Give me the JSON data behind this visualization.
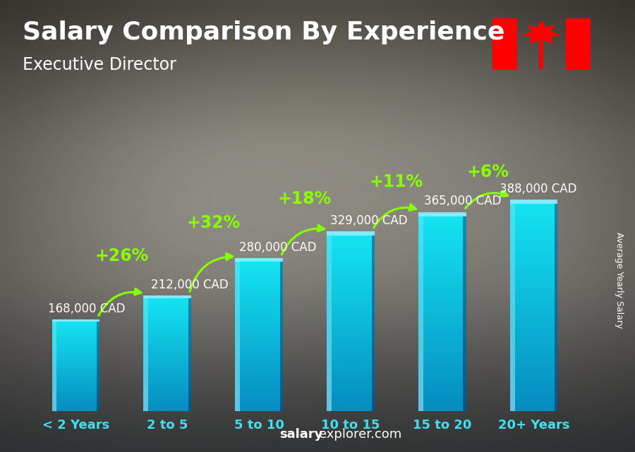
{
  "title": "Salary Comparison By Experience",
  "subtitle": "Executive Director",
  "categories": [
    "< 2 Years",
    "2 to 5",
    "5 to 10",
    "10 to 15",
    "15 to 20",
    "20+ Years"
  ],
  "values": [
    168000,
    212000,
    280000,
    329000,
    365000,
    388000
  ],
  "labels": [
    "168,000 CAD",
    "212,000 CAD",
    "280,000 CAD",
    "329,000 CAD",
    "365,000 CAD",
    "388,000 CAD"
  ],
  "pct_changes": [
    null,
    "+26%",
    "+32%",
    "+18%",
    "+11%",
    "+6%"
  ],
  "bar_color_main": "#1ab8e8",
  "bar_color_light": "#55d4f5",
  "bar_color_dark": "#0880b0",
  "bar_color_side": "#0a6090",
  "bg_color": "#5a5a5a",
  "text_color_white": "#ffffff",
  "text_color_cyan": "#40e0f0",
  "text_color_green": "#88ff00",
  "ylabel": "Average Yearly Salary",
  "watermark_bold": "salary",
  "watermark_normal": "explorer.com",
  "ylim": [
    0,
    480000
  ],
  "title_fontsize": 26,
  "subtitle_fontsize": 17,
  "label_fontsize": 12,
  "pct_fontsize": 17,
  "cat_fontsize": 13,
  "flag_red": "#FF0000",
  "flag_white": "#FFFFFF"
}
